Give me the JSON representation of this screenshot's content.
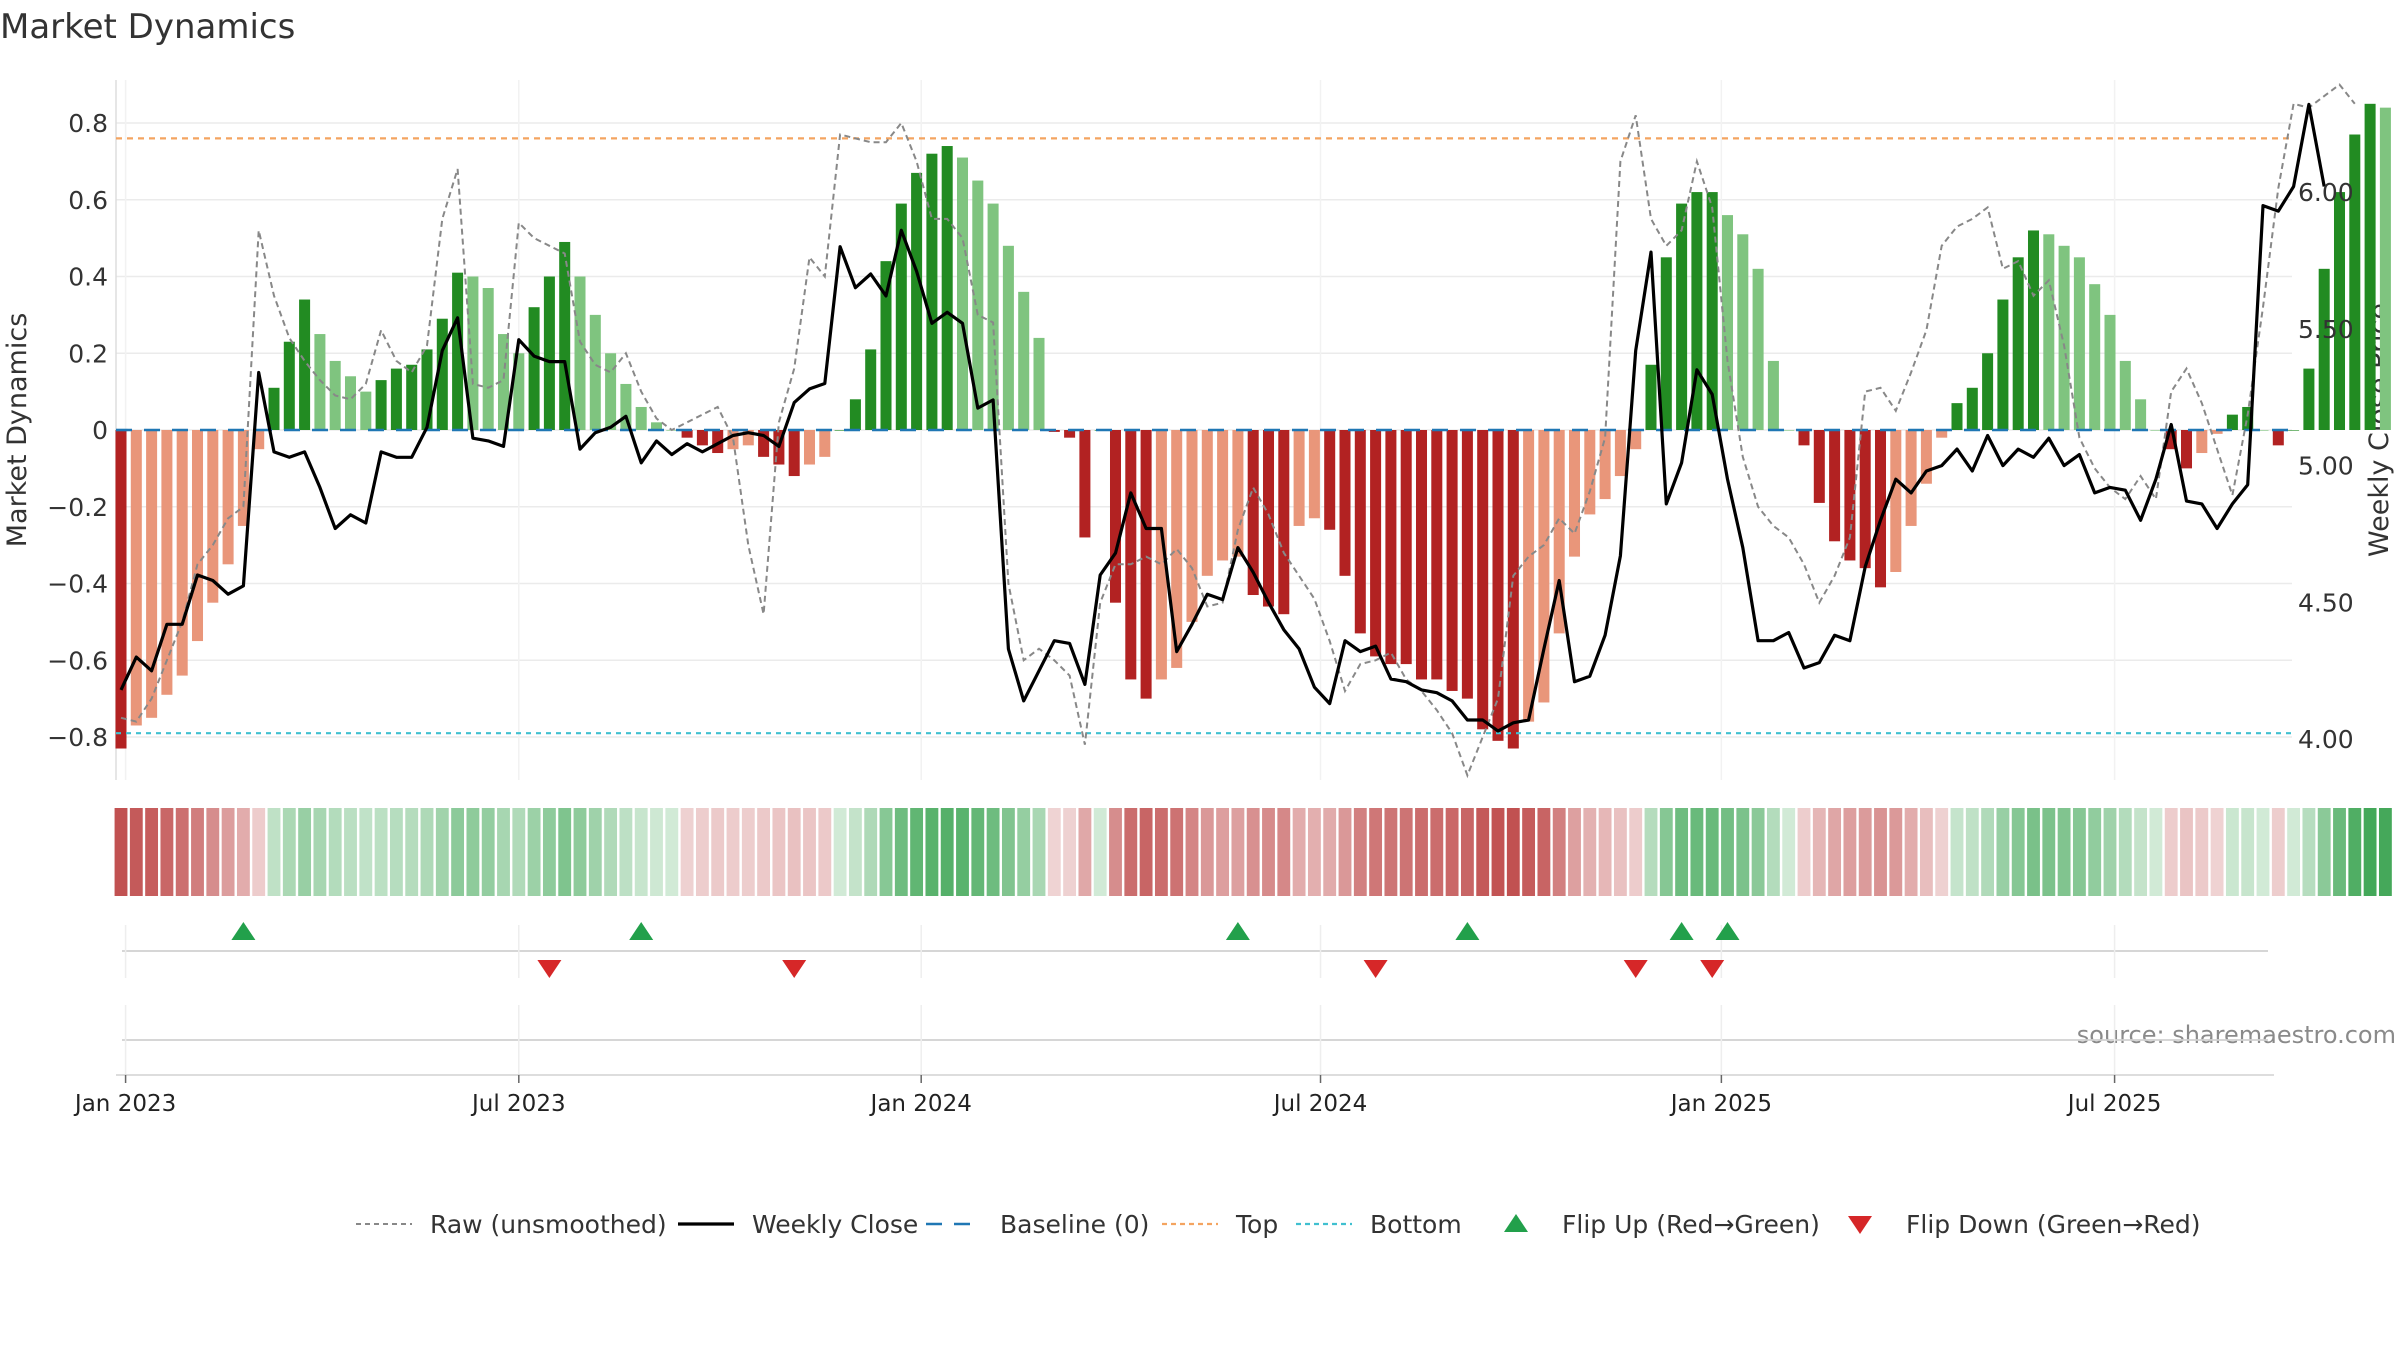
{
  "chart_data": {
    "type": "bar",
    "title": "Market Dynamics",
    "ylabel_left": "Market Dynamics",
    "ylabel_right": "Weekly Close Price",
    "source": "source: sharemaestro.com",
    "ylim_left": [
      -0.9,
      0.9
    ],
    "ylim_right": [
      3.88,
      6.4
    ],
    "left_ticks": [
      "0.8",
      "0.6",
      "0.4",
      "0.2",
      "0",
      "−0.2",
      "−0.4",
      "−0.6",
      "−0.8"
    ],
    "left_tick_values": [
      0.8,
      0.6,
      0.4,
      0.2,
      0,
      -0.2,
      -0.4,
      -0.6,
      -0.8
    ],
    "right_ticks": [
      "6.00",
      "5.50",
      "5.00",
      "4.50",
      "4.00"
    ],
    "right_tick_values": [
      6.0,
      5.5,
      5.0,
      4.5,
      4.0
    ],
    "x_ticks": [
      "Jan 2023",
      "Jul 2023",
      "Jan 2024",
      "Jul 2024",
      "Jan 2025",
      "Jul 2025"
    ],
    "x_tick_weeks": [
      0.3,
      26,
      52.3,
      78.4,
      104.6,
      130.3
    ],
    "week_start": "2023-01-02",
    "top_level": 0.76,
    "bottom_level": -0.79,
    "baseline": 0,
    "colors": {
      "strong_green": "#228B22",
      "light_green": "#7FC47F",
      "strong_red": "#B22222",
      "light_red": "#E9967A",
      "weekly_close": "#000000",
      "raw": "#888888",
      "baseline": "#1F77B4",
      "top": "#F4A460",
      "bottom": "#40C0D0",
      "flip_up": "#22A04B",
      "flip_down": "#D62728",
      "grid": "#EBEBEB"
    },
    "dynamics": [
      -0.83,
      -0.77,
      -0.75,
      -0.69,
      -0.64,
      -0.55,
      -0.45,
      -0.35,
      -0.25,
      -0.05,
      0.11,
      0.23,
      0.34,
      0.25,
      0.18,
      0.14,
      0.1,
      0.13,
      0.16,
      0.17,
      0.21,
      0.29,
      0.41,
      0.4,
      0.37,
      0.25,
      0.2,
      0.32,
      0.4,
      0.49,
      0.4,
      0.3,
      0.2,
      0.12,
      0.06,
      0.02,
      0,
      -0.02,
      -0.04,
      -0.06,
      -0.05,
      -0.04,
      -0.07,
      -0.09,
      -0.12,
      -0.09,
      -0.07,
      0,
      0.08,
      0.21,
      0.44,
      0.59,
      0.67,
      0.72,
      0.74,
      0.71,
      0.65,
      0.59,
      0.48,
      0.36,
      0.24,
      -0.005,
      -0.02,
      -0.28,
      0,
      -0.45,
      -0.65,
      -0.7,
      -0.65,
      -0.62,
      -0.5,
      -0.38,
      -0.34,
      -0.33,
      -0.43,
      -0.46,
      -0.48,
      -0.25,
      -0.23,
      -0.26,
      -0.38,
      -0.53,
      -0.59,
      -0.61,
      -0.61,
      -0.65,
      -0.65,
      -0.68,
      -0.7,
      -0.78,
      -0.81,
      -0.83,
      -0.76,
      -0.71,
      -0.53,
      -0.33,
      -0.22,
      -0.18,
      -0.12,
      -0.05,
      0.17,
      0.45,
      0.59,
      0.62,
      0.62,
      0.56,
      0.51,
      0.42,
      0.18,
      0,
      -0.04,
      -0.19,
      -0.29,
      -0.34,
      -0.36,
      -0.41,
      -0.37,
      -0.25,
      -0.14,
      -0.02,
      0.07,
      0.11,
      0.2,
      0.34,
      0.45,
      0.52,
      0.51,
      0.48,
      0.45,
      0.38,
      0.3,
      0.18,
      0.08,
      0,
      -0.05,
      -0.1,
      -0.06,
      -0.01,
      0.04,
      0.06,
      0,
      -0.04,
      0,
      0.16,
      0.42,
      0.62,
      0.77,
      0.85,
      0.84
    ],
    "weekly_close": [
      4.18,
      4.3,
      4.25,
      4.42,
      4.42,
      4.6,
      4.58,
      4.53,
      4.56,
      5.34,
      5.05,
      5.03,
      5.05,
      4.92,
      4.77,
      4.82,
      4.79,
      5.05,
      5.03,
      5.03,
      5.14,
      5.42,
      5.54,
      5.1,
      5.09,
      5.07,
      5.46,
      5.4,
      5.38,
      5.38,
      5.06,
      5.12,
      5.14,
      5.18,
      5.01,
      5.09,
      5.04,
      5.08,
      5.05,
      5.08,
      5.11,
      5.12,
      5.11,
      5.07,
      5.23,
      5.28,
      5.3,
      5.8,
      5.65,
      5.7,
      5.62,
      5.86,
      5.71,
      5.52,
      5.56,
      5.52,
      5.21,
      5.24,
      4.33,
      4.14,
      4.25,
      4.36,
      4.35,
      4.2,
      4.6,
      4.68,
      4.9,
      4.77,
      4.77,
      4.32,
      4.42,
      4.53,
      4.51,
      4.7,
      4.61,
      4.5,
      4.4,
      4.33,
      4.19,
      4.13,
      4.36,
      4.32,
      4.34,
      4.22,
      4.21,
      4.18,
      4.17,
      4.14,
      4.07,
      4.07,
      4.03,
      4.06,
      4.07,
      4.33,
      4.58,
      4.21,
      4.23,
      4.38,
      4.67,
      5.42,
      5.78,
      4.86,
      5.01,
      5.35,
      5.26,
      4.95,
      4.7,
      4.36,
      4.36,
      4.39,
      4.26,
      4.28,
      4.38,
      4.36,
      4.63,
      4.8,
      4.95,
      4.9,
      4.98,
      5.0,
      5.06,
      4.98,
      5.11,
      5.0,
      5.06,
      5.03,
      5.1,
      5.0,
      5.04,
      4.9,
      4.92,
      4.91,
      4.8,
      4.95,
      5.15,
      4.87,
      4.86,
      4.77,
      4.86,
      4.93,
      5.95,
      5.93,
      6.02,
      6.32,
      6.02
    ],
    "raw": [
      -0.75,
      -0.76,
      -0.7,
      -0.6,
      -0.5,
      -0.35,
      -0.3,
      -0.23,
      -0.2,
      0.52,
      0.35,
      0.24,
      0.18,
      0.13,
      0.09,
      0.08,
      0.12,
      0.26,
      0.18,
      0.15,
      0.22,
      0.55,
      0.68,
      0.12,
      0.11,
      0.13,
      0.54,
      0.5,
      0.48,
      0.46,
      0.23,
      0.17,
      0.15,
      0.2,
      0.1,
      0.03,
      0,
      0.02,
      0.04,
      0.06,
      -0.02,
      -0.3,
      -0.48,
      0.02,
      0.16,
      0.45,
      0.4,
      0.77,
      0.76,
      0.75,
      0.75,
      0.8,
      0.7,
      0.55,
      0.55,
      0.5,
      0.3,
      0.28,
      -0.4,
      -0.6,
      -0.57,
      -0.6,
      -0.64,
      -0.82,
      -0.45,
      -0.35,
      -0.35,
      -0.33,
      -0.35,
      -0.31,
      -0.36,
      -0.46,
      -0.45,
      -0.26,
      -0.15,
      -0.22,
      -0.32,
      -0.38,
      -0.44,
      -0.55,
      -0.68,
      -0.61,
      -0.6,
      -0.58,
      -0.65,
      -0.68,
      -0.73,
      -0.79,
      -0.9,
      -0.8,
      -0.7,
      -0.38,
      -0.33,
      -0.3,
      -0.23,
      -0.27,
      -0.16,
      -0.02,
      0.7,
      0.82,
      0.55,
      0.48,
      0.52,
      0.7,
      0.58,
      0.18,
      -0.07,
      -0.2,
      -0.25,
      -0.28,
      -0.35,
      -0.45,
      -0.38,
      -0.28,
      0.1,
      0.11,
      0.05,
      0.15,
      0.26,
      0.48,
      0.53,
      0.55,
      0.58,
      0.42,
      0.44,
      0.35,
      0.39,
      0.22,
      -0.02,
      -0.1,
      -0.15,
      -0.18,
      -0.12,
      -0.18,
      0.1,
      0.16,
      0.07,
      -0.05,
      -0.17,
      0.04,
      0.32,
      0.63,
      0.85,
      0.84,
      0.87,
      0.9,
      0.85
    ],
    "flip_up_weeks": [
      8,
      34,
      73,
      88,
      102,
      105
    ],
    "flip_down_weeks": [
      28,
      44,
      82,
      99,
      104
    ],
    "legend": [
      {
        "label": "Raw (unsmoothed)",
        "style": "dash-gray"
      },
      {
        "label": "Weekly Close",
        "style": "solid-black"
      },
      {
        "label": "Baseline (0)",
        "style": "dash-blue"
      },
      {
        "label": "Top",
        "style": "dot-orange"
      },
      {
        "label": "Bottom",
        "style": "dot-teal"
      },
      {
        "label": "Flip Up (Red→Green)",
        "style": "tri-up"
      },
      {
        "label": "Flip Down (Green→Red)",
        "style": "tri-down"
      }
    ]
  }
}
